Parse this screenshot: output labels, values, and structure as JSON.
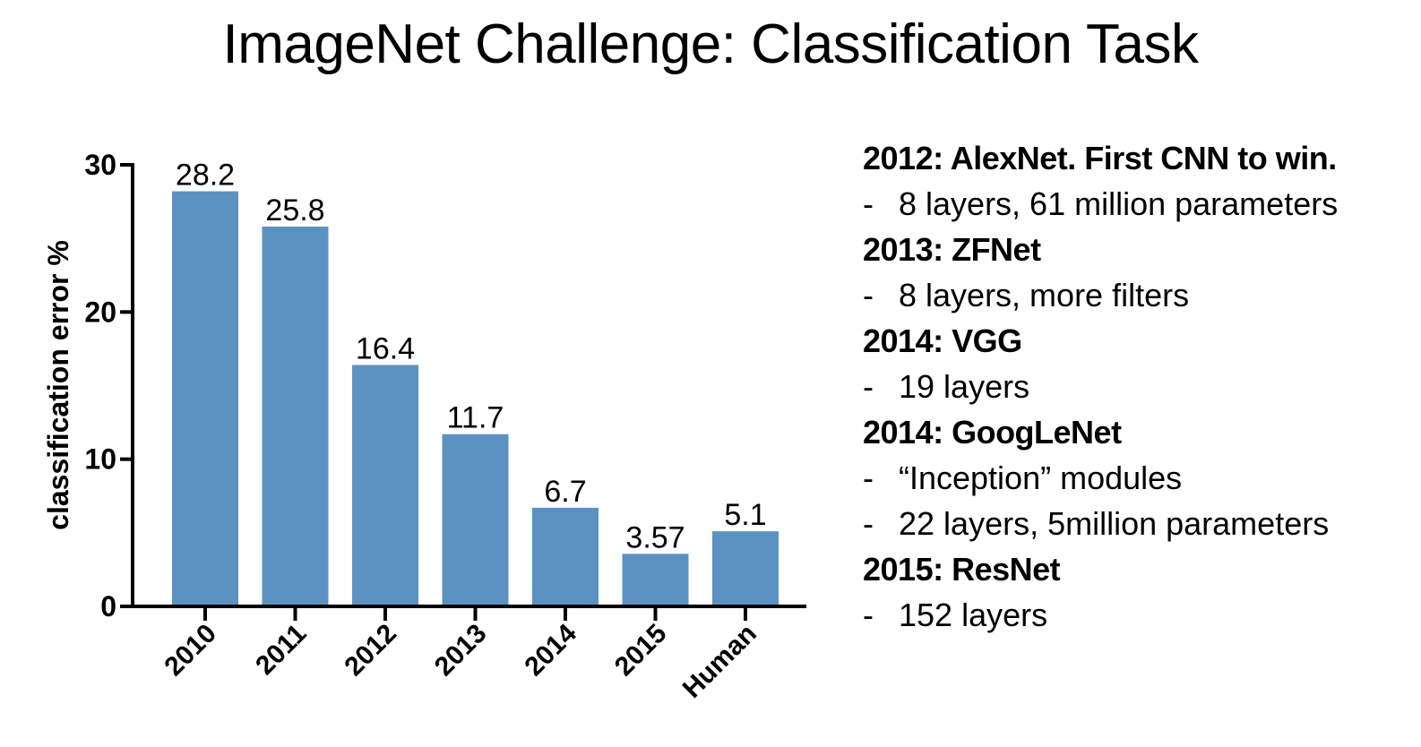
{
  "title": "ImageNet Challenge: Classification Task",
  "chart_data": {
    "type": "bar",
    "categories": [
      "2010",
      "2011",
      "2012",
      "2013",
      "2014",
      "2015",
      "Human"
    ],
    "values": [
      28.2,
      25.8,
      16.4,
      11.7,
      6.7,
      3.57,
      5.1
    ],
    "value_labels": [
      "28.2",
      "25.8",
      "16.4",
      "11.7",
      "6.7",
      "3.57",
      "5.1"
    ],
    "title": "",
    "xlabel": "",
    "ylabel": "classification error %",
    "ylim": [
      0,
      30
    ],
    "yticks": [
      "0",
      "10",
      "20",
      "30"
    ],
    "ytick_values": [
      0,
      10,
      20,
      30
    ],
    "bar_color": "#5b92c2",
    "grid": false,
    "legend": "none"
  },
  "notes": [
    {
      "heading": "2012: AlexNet. First CNN to win.",
      "bullets": [
        "8 layers, 61 million parameters"
      ]
    },
    {
      "heading": "2013: ZFNet",
      "bullets": [
        "8 layers, more filters"
      ]
    },
    {
      "heading": "2014: VGG",
      "bullets": [
        "19 layers"
      ]
    },
    {
      "heading": "2014: GoogLeNet",
      "bullets": [
        "“Inception” modules",
        "22 layers, 5million parameters"
      ]
    },
    {
      "heading": "2015: ResNet",
      "bullets": [
        "152 layers"
      ]
    }
  ],
  "bullet_marker": "-"
}
